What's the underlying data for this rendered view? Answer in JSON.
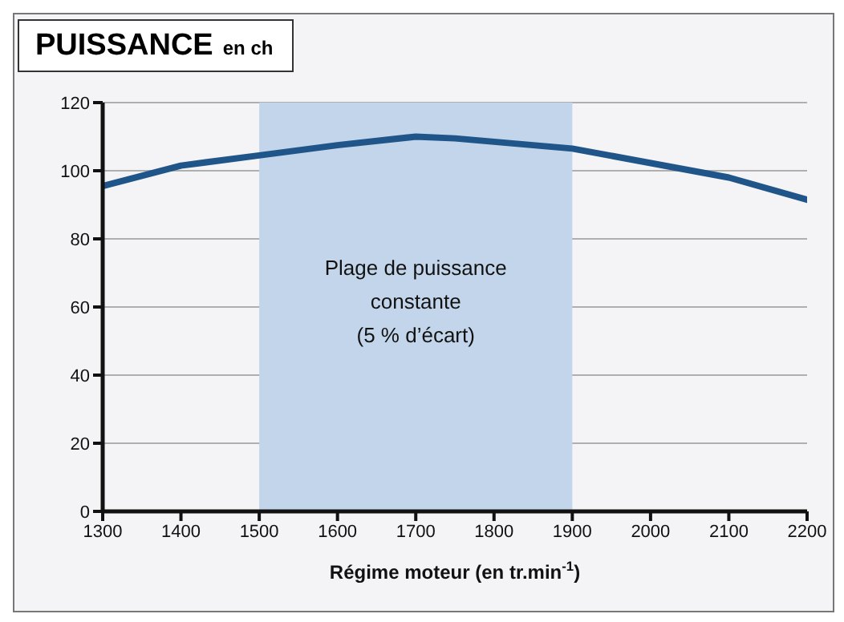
{
  "chart_data": {
    "type": "line",
    "title": "PUISSANCE",
    "subtitle": "en ch",
    "xlabel": "Régime moteur (en tr.min$^{-1}$)",
    "series": [
      {
        "color": "#1f5588",
        "x": [
          1300,
          1400,
          1500,
          1600,
          1700,
          1750,
          1900,
          2100,
          2200
        ],
        "values": [
          95.5,
          101.5,
          104.5,
          107.5,
          110,
          109.5,
          106.5,
          98,
          91.5
        ]
      }
    ],
    "xlim": [
      1300,
      2200
    ],
    "xticks": [
      1300,
      1400,
      1500,
      1600,
      1700,
      1800,
      1900,
      2000,
      2100,
      2200
    ],
    "ylim": [
      0,
      120
    ],
    "yticks": [
      0,
      20,
      40,
      60,
      80,
      100,
      120
    ],
    "grid": "y",
    "marker": "none",
    "line_style": "solid",
    "bands": [
      {
        "axis": "x",
        "from": 1500,
        "to": 1900,
        "label": "Plage de puissance constante (5 % d’écart)",
        "color": "#c2d5ea"
      }
    ]
  }
}
